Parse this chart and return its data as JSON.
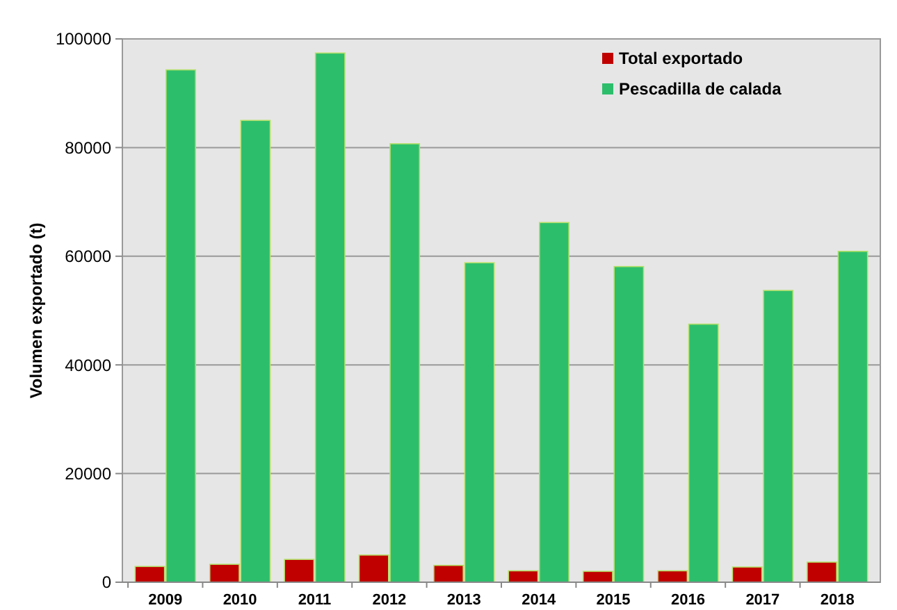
{
  "chart_data": {
    "type": "bar",
    "ylabel": "Volumen exportado (t)",
    "categories": [
      "2009",
      "2010",
      "2011",
      "2012",
      "2013",
      "2014",
      "2015",
      "2016",
      "2017",
      "2018"
    ],
    "series": [
      {
        "name": "Total exportado",
        "color": "#c00000",
        "values": [
          2900,
          3300,
          4200,
          5000,
          3100,
          2100,
          2000,
          2100,
          2800,
          3700
        ]
      },
      {
        "name": "Pescadilla de calada",
        "color": "#2dbe6c",
        "values": [
          94300,
          85000,
          97400,
          80700,
          58800,
          66200,
          58100,
          47500,
          53700,
          60900
        ]
      }
    ],
    "ylim": [
      0,
      100000
    ],
    "yticks": [
      0,
      20000,
      40000,
      60000,
      80000,
      100000
    ],
    "grid": "y",
    "legend": "top right"
  }
}
